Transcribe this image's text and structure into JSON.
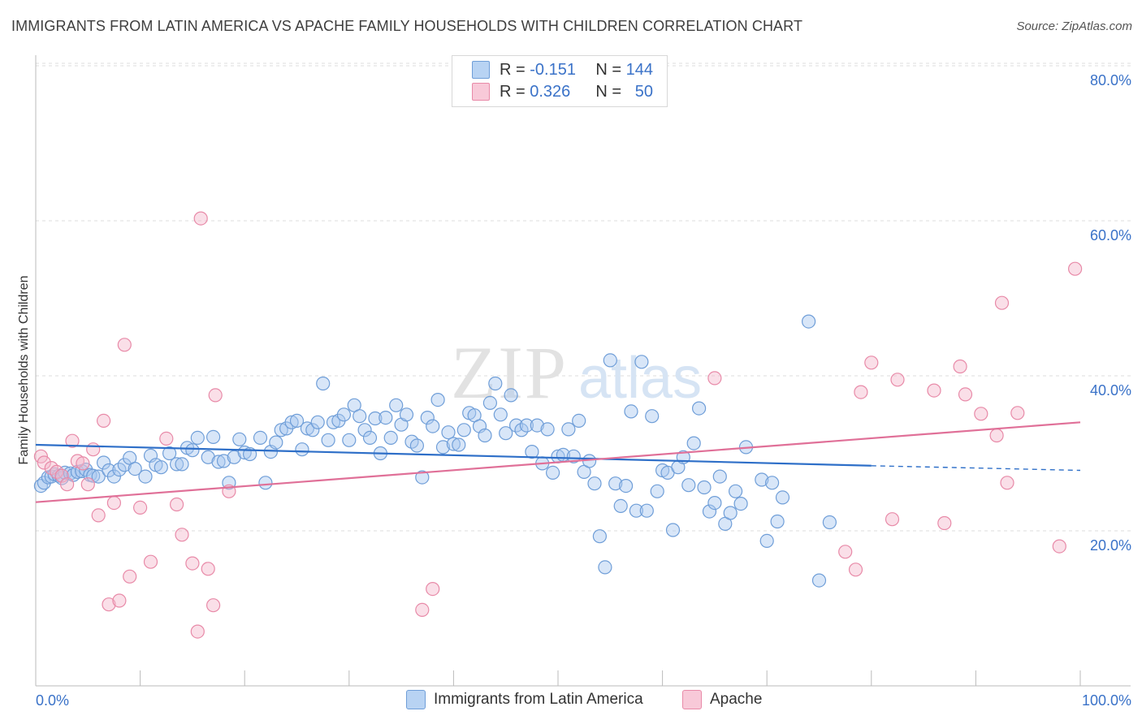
{
  "title": "IMMIGRANTS FROM LATIN AMERICA VS APACHE FAMILY HOUSEHOLDS WITH CHILDREN CORRELATION CHART",
  "source": "Source: ZipAtlas.com",
  "watermark": {
    "zip": "ZIP",
    "atlas": "atlas"
  },
  "legend_top": {
    "rows": [
      {
        "r_label": "R =",
        "r_value": "-0.151",
        "n_label": "N =",
        "n_value": "144"
      },
      {
        "r_label": "R =",
        "r_value": "0.326",
        "n_label": "N =",
        "n_value": "50"
      }
    ]
  },
  "legend_bottom": {
    "items": [
      "Immigrants from Latin America",
      "Apache"
    ]
  },
  "colors": {
    "blue_fill": "#a8c8f0",
    "blue_stroke": "#6f9ed8",
    "blue_line": "#2e6fc8",
    "pink_fill": "#f5b8cb",
    "pink_stroke": "#e88aa8",
    "pink_line": "#e07098",
    "tick_text": "#3a72c8",
    "grid": "#dddddd"
  },
  "chart_data": {
    "type": "scatter",
    "title": "IMMIGRANTS FROM LATIN AMERICA VS APACHE FAMILY HOUSEHOLDS WITH CHILDREN CORRELATION CHART",
    "ylabel": "Family Households with Children",
    "xlabel": "",
    "x_ticks": [
      "0.0%",
      "100.0%"
    ],
    "y_ticks": [
      "20.0%",
      "40.0%",
      "60.0%",
      "80.0%"
    ],
    "xlim": [
      0,
      100
    ],
    "ylim": [
      0,
      84
    ],
    "grid": "horizontal dashed",
    "series": [
      {
        "name": "Immigrants from Latin America",
        "color": "#a8c8f0",
        "trend": {
          "x0": 0,
          "y0": 31.1,
          "x1": 80,
          "y1": 28.4,
          "dashed_to_x": 100,
          "dashed_to_y": 27.8
        },
        "points": [
          [
            0.5,
            25.8
          ],
          [
            0.8,
            26.2
          ],
          [
            1.2,
            26.9
          ],
          [
            1.5,
            27.0
          ],
          [
            1.8,
            27.3
          ],
          [
            2.2,
            27.1
          ],
          [
            2.5,
            26.8
          ],
          [
            2.8,
            27.5
          ],
          [
            3.3,
            27.4
          ],
          [
            3.6,
            27.2
          ],
          [
            4.0,
            27.6
          ],
          [
            4.4,
            27.7
          ],
          [
            4.8,
            27.9
          ],
          [
            5.2,
            27.2
          ],
          [
            5.5,
            27.1
          ],
          [
            6.0,
            27.0
          ],
          [
            6.5,
            28.8
          ],
          [
            7.0,
            27.8
          ],
          [
            7.5,
            27.0
          ],
          [
            8.0,
            27.9
          ],
          [
            8.5,
            28.5
          ],
          [
            9.0,
            29.4
          ],
          [
            9.5,
            28.0
          ],
          [
            10.5,
            27.0
          ],
          [
            11.0,
            29.7
          ],
          [
            11.5,
            28.5
          ],
          [
            12.0,
            28.2
          ],
          [
            12.8,
            30.0
          ],
          [
            13.5,
            28.6
          ],
          [
            14.0,
            28.6
          ],
          [
            14.5,
            30.7
          ],
          [
            15.0,
            30.4
          ],
          [
            15.5,
            32.0
          ],
          [
            16.5,
            29.5
          ],
          [
            17.0,
            32.1
          ],
          [
            17.5,
            28.9
          ],
          [
            18.0,
            29.0
          ],
          [
            18.5,
            26.2
          ],
          [
            19.0,
            29.5
          ],
          [
            19.5,
            31.8
          ],
          [
            20.0,
            30.1
          ],
          [
            20.5,
            29.9
          ],
          [
            21.5,
            32.0
          ],
          [
            22.0,
            26.2
          ],
          [
            22.5,
            30.2
          ],
          [
            23.0,
            31.4
          ],
          [
            23.5,
            33.0
          ],
          [
            24.0,
            33.2
          ],
          [
            24.5,
            34.0
          ],
          [
            25.0,
            34.2
          ],
          [
            25.5,
            30.5
          ],
          [
            26.0,
            33.2
          ],
          [
            26.5,
            33.0
          ],
          [
            27.0,
            34.0
          ],
          [
            27.5,
            39.0
          ],
          [
            28.0,
            31.7
          ],
          [
            28.5,
            34.0
          ],
          [
            29.0,
            34.2
          ],
          [
            29.5,
            35.0
          ],
          [
            30.0,
            31.7
          ],
          [
            30.5,
            36.2
          ],
          [
            31.0,
            34.8
          ],
          [
            31.5,
            33.0
          ],
          [
            32.0,
            32.0
          ],
          [
            32.5,
            34.5
          ],
          [
            33.0,
            30.0
          ],
          [
            33.5,
            34.6
          ],
          [
            34.0,
            32.0
          ],
          [
            34.5,
            36.2
          ],
          [
            35.0,
            33.7
          ],
          [
            35.5,
            35.0
          ],
          [
            36.0,
            31.5
          ],
          [
            36.5,
            31.0
          ],
          [
            37.0,
            26.9
          ],
          [
            37.5,
            34.6
          ],
          [
            38.0,
            33.5
          ],
          [
            38.5,
            36.9
          ],
          [
            39.0,
            30.8
          ],
          [
            39.5,
            32.7
          ],
          [
            40.0,
            31.2
          ],
          [
            40.5,
            31.1
          ],
          [
            41.0,
            33.0
          ],
          [
            41.5,
            35.2
          ],
          [
            42.0,
            34.9
          ],
          [
            42.5,
            33.5
          ],
          [
            43.0,
            32.3
          ],
          [
            43.5,
            36.5
          ],
          [
            44.0,
            39.0
          ],
          [
            44.5,
            35.0
          ],
          [
            45.0,
            32.6
          ],
          [
            45.5,
            37.5
          ],
          [
            46.0,
            33.6
          ],
          [
            46.5,
            33.0
          ],
          [
            47.0,
            33.6
          ],
          [
            47.5,
            30.2
          ],
          [
            48.0,
            33.6
          ],
          [
            48.5,
            28.7
          ],
          [
            49.0,
            33.1
          ],
          [
            49.5,
            27.5
          ],
          [
            50.0,
            29.6
          ],
          [
            50.5,
            29.8
          ],
          [
            51.0,
            33.1
          ],
          [
            51.5,
            29.6
          ],
          [
            52.0,
            34.2
          ],
          [
            52.5,
            27.6
          ],
          [
            53.0,
            29.0
          ],
          [
            53.5,
            26.1
          ],
          [
            54.0,
            19.3
          ],
          [
            54.5,
            15.3
          ],
          [
            55.0,
            42.0
          ],
          [
            55.5,
            26.1
          ],
          [
            56.0,
            23.2
          ],
          [
            56.5,
            25.8
          ],
          [
            57.0,
            35.4
          ],
          [
            57.5,
            22.6
          ],
          [
            58.0,
            41.8
          ],
          [
            58.5,
            22.6
          ],
          [
            59.0,
            34.8
          ],
          [
            59.5,
            25.1
          ],
          [
            60.0,
            27.8
          ],
          [
            60.5,
            27.5
          ],
          [
            61.0,
            20.1
          ],
          [
            61.5,
            28.2
          ],
          [
            62.0,
            29.5
          ],
          [
            62.5,
            25.9
          ],
          [
            63.0,
            31.3
          ],
          [
            63.5,
            35.8
          ],
          [
            64.0,
            25.6
          ],
          [
            64.5,
            22.5
          ],
          [
            65.0,
            23.6
          ],
          [
            65.5,
            27.0
          ],
          [
            66.0,
            20.9
          ],
          [
            66.5,
            22.3
          ],
          [
            67.0,
            25.1
          ],
          [
            67.5,
            23.5
          ],
          [
            68.0,
            30.8
          ],
          [
            69.5,
            26.6
          ],
          [
            70.0,
            18.7
          ],
          [
            70.5,
            26.2
          ],
          [
            71.0,
            21.2
          ],
          [
            71.5,
            24.3
          ],
          [
            74.0,
            47.0
          ],
          [
            75.0,
            13.6
          ],
          [
            76.0,
            21.1
          ]
        ]
      },
      {
        "name": "Apache",
        "color": "#f5b8cb",
        "trend": {
          "x0": 0,
          "y0": 23.7,
          "x1": 100,
          "y1": 34.0
        },
        "points": [
          [
            0.5,
            29.6
          ],
          [
            0.8,
            28.8
          ],
          [
            1.5,
            28.1
          ],
          [
            2.0,
            27.6
          ],
          [
            2.5,
            27.1
          ],
          [
            3.0,
            26.0
          ],
          [
            3.5,
            31.6
          ],
          [
            4.0,
            29.0
          ],
          [
            4.5,
            28.7
          ],
          [
            5.0,
            26.0
          ],
          [
            5.5,
            30.5
          ],
          [
            6.0,
            22.0
          ],
          [
            6.5,
            34.2
          ],
          [
            7.0,
            10.5
          ],
          [
            7.5,
            23.6
          ],
          [
            8.0,
            11.0
          ],
          [
            8.5,
            44.0
          ],
          [
            9.0,
            14.1
          ],
          [
            10.0,
            23.0
          ],
          [
            11.0,
            16.0
          ],
          [
            12.5,
            31.9
          ],
          [
            13.5,
            23.4
          ],
          [
            14.0,
            19.5
          ],
          [
            15.0,
            15.8
          ],
          [
            15.5,
            7.0
          ],
          [
            15.8,
            60.3
          ],
          [
            16.5,
            15.1
          ],
          [
            17.0,
            10.4
          ],
          [
            17.2,
            37.5
          ],
          [
            18.5,
            25.1
          ],
          [
            37.0,
            9.8
          ],
          [
            38.0,
            12.5
          ],
          [
            65.0,
            39.7
          ],
          [
            77.5,
            17.3
          ],
          [
            78.5,
            15.0
          ],
          [
            79.0,
            37.9
          ],
          [
            80.0,
            41.7
          ],
          [
            82.0,
            21.5
          ],
          [
            82.5,
            39.5
          ],
          [
            86.0,
            38.1
          ],
          [
            87.0,
            21.0
          ],
          [
            88.5,
            41.2
          ],
          [
            89.0,
            37.6
          ],
          [
            90.5,
            35.1
          ],
          [
            92.0,
            32.3
          ],
          [
            92.5,
            49.4
          ],
          [
            93.0,
            26.2
          ],
          [
            94.0,
            35.2
          ],
          [
            98.0,
            18.0
          ],
          [
            99.5,
            53.8
          ]
        ]
      }
    ]
  }
}
